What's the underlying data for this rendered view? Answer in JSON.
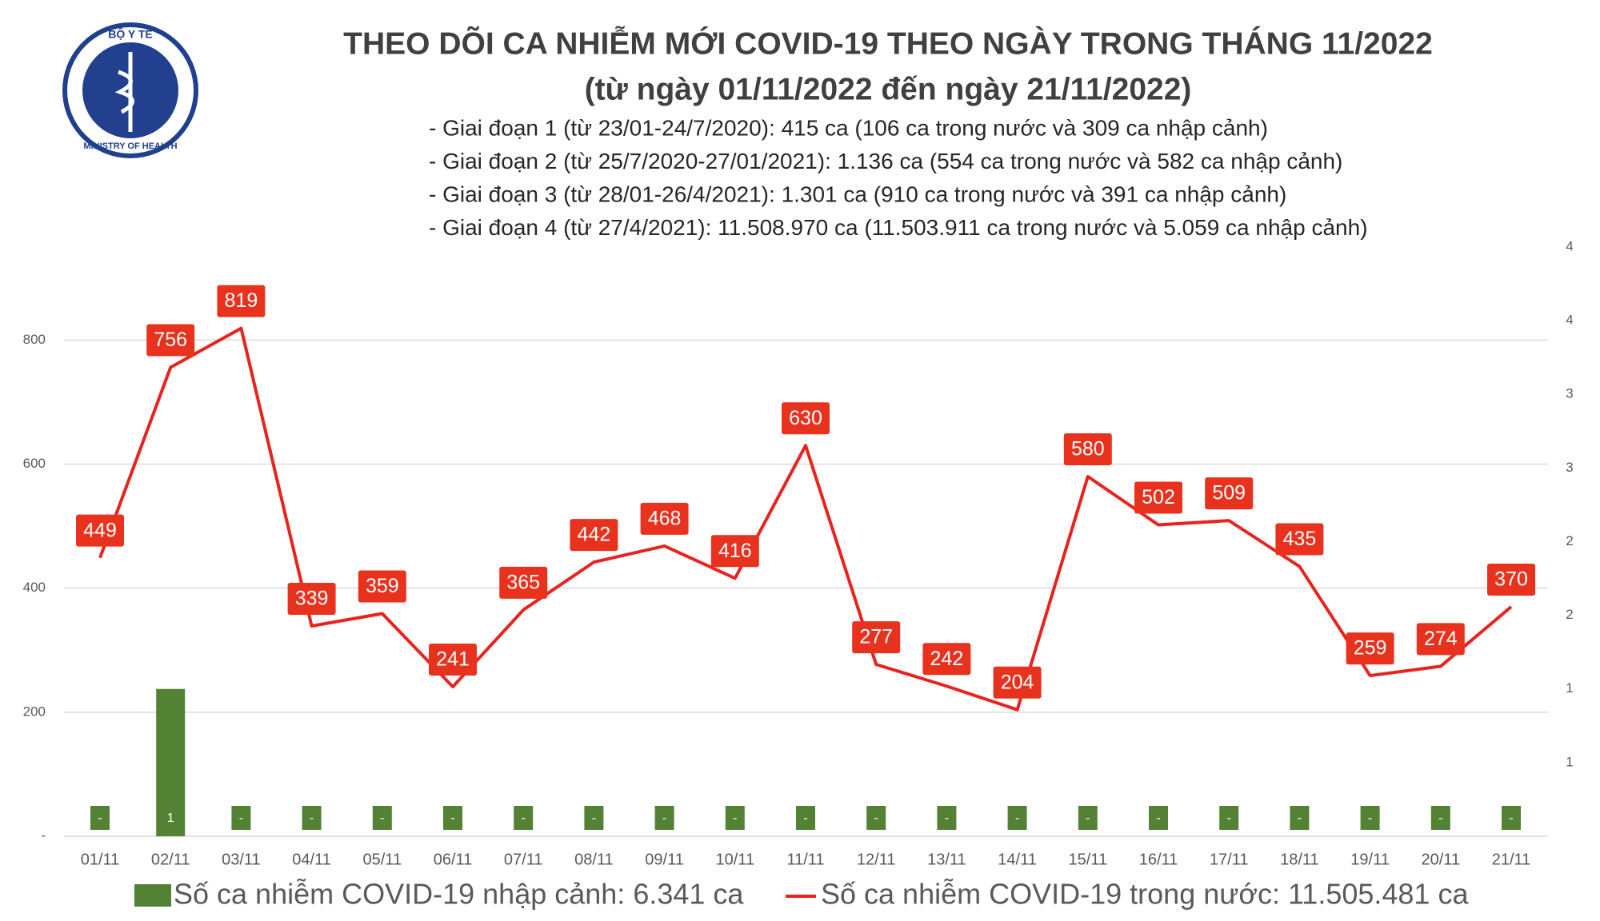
{
  "logo": {
    "top": "BỘ Y TẾ",
    "bottom": "MINISTRY OF HEALTH"
  },
  "chart_data": {
    "type": "bar+line",
    "title": "THEO DÕI CA NHIỄM MỚI COVID-19 THEO NGÀY TRONG THÁNG 11/2022",
    "subtitle": "(từ ngày 01/11/2022 đến ngày 21/11/2022)",
    "annotations": [
      "- Giai đoạn 1 (từ 23/01-24/7/2020): 415 ca (106 ca trong nước và 309 ca nhập cảnh)",
      "- Giai đoạn 2 (từ 25/7/2020-27/01/2021): 1.136 ca (554 ca trong nước và 582 ca nhập cảnh)",
      "- Giai đoạn 3 (từ 28/01-26/4/2021): 1.301 ca (910 ca trong nước và 391 ca nhập cảnh)",
      "- Giai đoạn 4 (từ 27/4/2021): 11.508.970 ca (11.503.911 ca trong nước và 5.059 ca nhập cảnh)"
    ],
    "categories": [
      "01/11",
      "02/11",
      "03/11",
      "04/11",
      "05/11",
      "06/11",
      "07/11",
      "08/11",
      "09/11",
      "10/11",
      "11/11",
      "12/11",
      "13/11",
      "14/11",
      "15/11",
      "16/11",
      "17/11",
      "18/11",
      "19/11",
      "20/11",
      "21/11"
    ],
    "series": [
      {
        "name": "Số ca nhiễm COVID-19 nhập cảnh: 6.341 ca",
        "type": "bar",
        "axis": "y2",
        "color": "#548235",
        "values": [
          0,
          1,
          0,
          0,
          0,
          0,
          0,
          0,
          0,
          0,
          0,
          0,
          0,
          0,
          0,
          0,
          0,
          0,
          0,
          0,
          0
        ],
        "value_labels": [
          "-",
          "1",
          "-",
          "-",
          "-",
          "-",
          "-",
          "-",
          "-",
          "-",
          "-",
          "-",
          "-",
          "-",
          "-",
          "-",
          "-",
          "-",
          "-",
          "-",
          "-"
        ]
      },
      {
        "name": "Số ca nhiễm COVID-19 trong nước: 11.505.481 ca",
        "type": "line",
        "color": "#e8231f",
        "values": [
          449,
          756,
          819,
          339,
          359,
          241,
          365,
          442,
          468,
          416,
          630,
          277,
          242,
          204,
          580,
          502,
          509,
          435,
          259,
          274,
          370
        ]
      }
    ],
    "ylim": [
      0,
      950
    ],
    "yticks": [
      {
        "value": 0,
        "label": "-"
      },
      200,
      400,
      600,
      800
    ],
    "y2lim": [
      0,
      4
    ],
    "y2ticks": [
      {
        "value": 0.5,
        "label": "1"
      },
      1,
      {
        "value": 1.5,
        "label": "2"
      },
      2,
      {
        "value": 2.5,
        "label": "3"
      },
      3,
      {
        "value": 3.5,
        "label": "4"
      },
      4
    ],
    "grid": true,
    "legend": "bottom"
  }
}
